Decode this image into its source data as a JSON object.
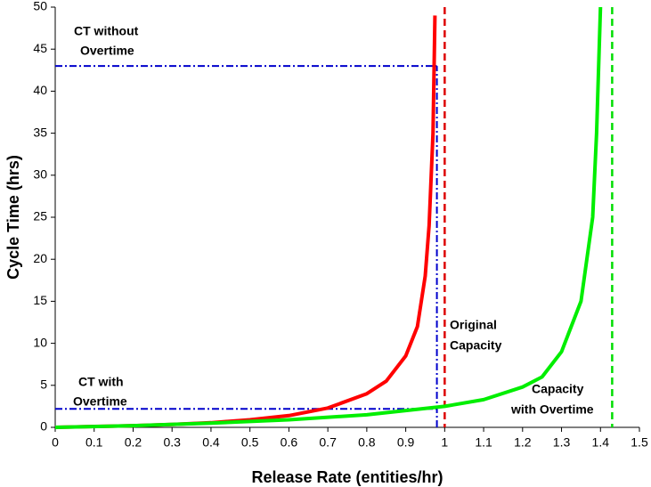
{
  "chart_data": {
    "type": "line",
    "xlabel": "Release Rate (entities/hr)",
    "ylabel": "Cycle Time (hrs)",
    "xlim": [
      0,
      1.5
    ],
    "ylim": [
      0,
      50
    ],
    "xticks": [
      0,
      0.1,
      0.2,
      0.3,
      0.4,
      0.5,
      0.6,
      0.7,
      0.8,
      0.9,
      1,
      1.1,
      1.2,
      1.3,
      1.4,
      1.5
    ],
    "yticks": [
      0,
      5,
      10,
      15,
      20,
      25,
      30,
      35,
      40,
      45,
      50
    ],
    "grid": false,
    "series": [
      {
        "color": "#ff0000",
        "x": [
          0,
          0.1,
          0.2,
          0.3,
          0.4,
          0.5,
          0.6,
          0.7,
          0.8,
          0.85,
          0.9,
          0.93,
          0.95,
          0.96,
          0.97,
          0.975
        ],
        "values": [
          0,
          0.1,
          0.2,
          0.35,
          0.55,
          0.9,
          1.4,
          2.3,
          4,
          5.5,
          8.5,
          12,
          18,
          24,
          35,
          49
        ]
      },
      {
        "color": "#00ee00",
        "x": [
          0,
          0.2,
          0.4,
          0.6,
          0.8,
          0.9,
          1.0,
          1.1,
          1.2,
          1.25,
          1.3,
          1.35,
          1.38,
          1.39,
          1.4
        ],
        "values": [
          0,
          0.2,
          0.5,
          0.9,
          1.5,
          2,
          2.5,
          3.3,
          4.8,
          6,
          9,
          15,
          25,
          35,
          50
        ]
      }
    ],
    "vlines": [
      {
        "x": 1,
        "color": "#dd0000"
      },
      {
        "x": 1.43,
        "color": "#00dd00"
      }
    ],
    "guides": [
      {
        "x": [
          0,
          0.98
        ],
        "values": [
          43,
          43
        ],
        "color": "#0000cc"
      },
      {
        "x": [
          0.98,
          0.98
        ],
        "values": [
          0,
          43
        ],
        "color": "#0000cc"
      },
      {
        "x": [
          0,
          0.98
        ],
        "values": [
          2.2,
          2.2
        ],
        "color": "#0000cc"
      }
    ],
    "annotations": [
      {
        "lines": [
          "CT without",
          "Overtime"
        ]
      },
      {
        "lines": [
          "Original",
          "Capacity"
        ]
      },
      {
        "lines": [
          "CT with",
          "Overtime"
        ]
      },
      {
        "lines": [
          "Capacity",
          "with Overtime"
        ]
      }
    ]
  }
}
